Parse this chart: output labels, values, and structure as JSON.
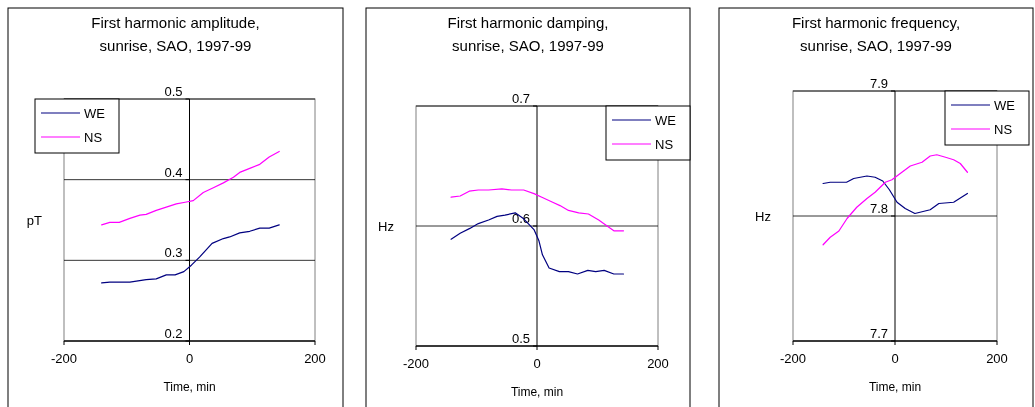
{
  "chart_data": [
    {
      "type": "line",
      "title": "First harmonic amplitude,\nsunrise, SAO, 1997-99",
      "xlabel": "Time, min",
      "ylabel": "pT",
      "xlim": [
        -200,
        200
      ],
      "xticks": [
        -200,
        0,
        200
      ],
      "ylim": [
        0.2,
        0.5
      ],
      "yticks": [
        0.2,
        0.3,
        0.4,
        0.5
      ],
      "grid": "y",
      "legend": "top left",
      "marker": "none",
      "line_style": "solid",
      "series": [
        {
          "name": "WE",
          "color": "#000080",
          "x": [
            -140,
            -127,
            -95,
            -69,
            -53,
            -37,
            -23,
            -9,
            3,
            16,
            36,
            54,
            64,
            80,
            96,
            112,
            127,
            143
          ],
          "values": [
            0.272,
            0.273,
            0.273,
            0.276,
            0.277,
            0.282,
            0.282,
            0.286,
            0.294,
            0.304,
            0.321,
            0.327,
            0.329,
            0.334,
            0.336,
            0.34,
            0.34,
            0.344
          ]
        },
        {
          "name": "NS",
          "color": "#ff00ff",
          "x": [
            -140,
            -127,
            -112,
            -95,
            -79,
            -69,
            -53,
            -37,
            -21,
            -7,
            6,
            22,
            38,
            54,
            70,
            80,
            96,
            112,
            127,
            143
          ],
          "values": [
            0.344,
            0.347,
            0.347,
            0.352,
            0.356,
            0.357,
            0.362,
            0.366,
            0.37,
            0.372,
            0.374,
            0.384,
            0.39,
            0.396,
            0.403,
            0.409,
            0.414,
            0.419,
            0.428,
            0.435
          ]
        }
      ]
    },
    {
      "type": "line",
      "title": "First harmonic damping,\nsunrise, SAO, 1997-99",
      "xlabel": "Time, min",
      "ylabel": "Hz",
      "xlim": [
        -200,
        200
      ],
      "xticks": [
        -200,
        0,
        200
      ],
      "ylim": [
        0.5,
        0.7
      ],
      "yticks": [
        0.5,
        0.6,
        0.7
      ],
      "grid": "y",
      "legend": "top right",
      "marker": "none",
      "line_style": "solid",
      "series": [
        {
          "name": "WE",
          "color": "#000080",
          "x": [
            -142,
            -127,
            -111,
            -97,
            -80,
            -66,
            -53,
            -36,
            -22,
            -5,
            3,
            9,
            20,
            37,
            52,
            67,
            84,
            97,
            111,
            127,
            143
          ],
          "values": [
            0.589,
            0.594,
            0.598,
            0.602,
            0.605,
            0.608,
            0.609,
            0.611,
            0.606,
            0.597,
            0.588,
            0.576,
            0.565,
            0.562,
            0.562,
            0.56,
            0.563,
            0.562,
            0.563,
            0.56,
            0.56
          ]
        },
        {
          "name": "NS",
          "color": "#ff00ff",
          "x": [
            -142,
            -127,
            -112,
            -97,
            -80,
            -58,
            -42,
            -22,
            -5,
            8,
            25,
            38,
            52,
            69,
            85,
            102,
            113,
            127,
            143
          ],
          "values": [
            0.624,
            0.625,
            0.629,
            0.63,
            0.63,
            0.631,
            0.63,
            0.63,
            0.627,
            0.624,
            0.62,
            0.617,
            0.613,
            0.611,
            0.61,
            0.605,
            0.601,
            0.596,
            0.596
          ]
        }
      ]
    },
    {
      "type": "line",
      "title": "First harmonic frequency,\nsunrise, SAO, 1997-99",
      "xlabel": "Time, min",
      "ylabel": "Hz",
      "xlim": [
        -200,
        200
      ],
      "xticks": [
        -200,
        0,
        200
      ],
      "ylim": [
        7.7,
        7.9
      ],
      "yticks": [
        7.7,
        7.8,
        7.9
      ],
      "grid": "y",
      "legend": "top right",
      "marker": "none",
      "line_style": "solid",
      "series": [
        {
          "name": "WE",
          "color": "#000080",
          "x": [
            -141,
            -127,
            -95,
            -81,
            -55,
            -39,
            -24,
            -11,
            4,
            20,
            39,
            69,
            86,
            115,
            142
          ],
          "values": [
            7.826,
            7.827,
            7.827,
            7.83,
            7.832,
            7.831,
            7.828,
            7.821,
            7.811,
            7.806,
            7.802,
            7.805,
            7.81,
            7.811,
            7.818
          ]
        },
        {
          "name": "NS",
          "color": "#ff00ff",
          "x": [
            -141,
            -127,
            -110,
            -94,
            -75,
            -55,
            -39,
            -19,
            -6,
            7,
            30,
            53,
            69,
            82,
            99,
            115,
            128,
            142
          ],
          "values": [
            7.777,
            7.783,
            7.788,
            7.798,
            7.807,
            7.814,
            7.819,
            7.827,
            7.829,
            7.833,
            7.84,
            7.843,
            7.848,
            7.849,
            7.847,
            7.845,
            7.842,
            7.835
          ]
        }
      ]
    }
  ]
}
